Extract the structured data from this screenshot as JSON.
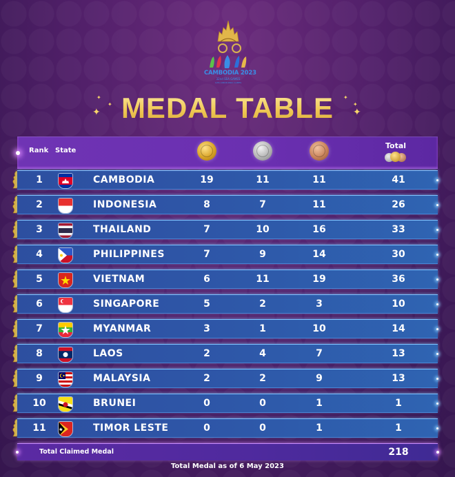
{
  "logo": {
    "title": "CAMBODIA 2023",
    "subtitle": "32nd SEA GAMES",
    "subtitle2": "12th ASEAN PARA GAMES"
  },
  "title": "MEDAL TABLE",
  "header": {
    "rank": "Rank",
    "state": "State",
    "gold_icon": "gold-medal",
    "silver_icon": "silver-medal",
    "bronze_icon": "bronze-medal",
    "total": "Total"
  },
  "rows": [
    {
      "rank": "1",
      "state": "CAMBODIA",
      "flag": "cambodia-flag",
      "gold": "19",
      "silver": "11",
      "bronze": "11",
      "total": "41"
    },
    {
      "rank": "2",
      "state": "INDONESIA",
      "flag": "indonesia-flag",
      "gold": "8",
      "silver": "7",
      "bronze": "11",
      "total": "26"
    },
    {
      "rank": "3",
      "state": "THAILAND",
      "flag": "thailand-flag",
      "gold": "7",
      "silver": "10",
      "bronze": "16",
      "total": "33"
    },
    {
      "rank": "4",
      "state": "PHILIPPINES",
      "flag": "philippines-flag",
      "gold": "7",
      "silver": "9",
      "bronze": "14",
      "total": "30"
    },
    {
      "rank": "5",
      "state": "VIETNAM",
      "flag": "vietnam-flag",
      "gold": "6",
      "silver": "11",
      "bronze": "19",
      "total": "36"
    },
    {
      "rank": "6",
      "state": "SINGAPORE",
      "flag": "singapore-flag",
      "gold": "5",
      "silver": "2",
      "bronze": "3",
      "total": "10"
    },
    {
      "rank": "7",
      "state": "MYANMAR",
      "flag": "myanmar-flag",
      "gold": "3",
      "silver": "1",
      "bronze": "10",
      "total": "14"
    },
    {
      "rank": "8",
      "state": "LAOS",
      "flag": "laos-flag",
      "gold": "2",
      "silver": "4",
      "bronze": "7",
      "total": "13"
    },
    {
      "rank": "9",
      "state": "MALAYSIA",
      "flag": "malaysia-flag",
      "gold": "2",
      "silver": "2",
      "bronze": "9",
      "total": "13"
    },
    {
      "rank": "10",
      "state": "BRUNEI",
      "flag": "brunei-flag",
      "gold": "0",
      "silver": "0",
      "bronze": "1",
      "total": "1"
    },
    {
      "rank": "11",
      "state": "TIMOR LESTE",
      "flag": "timor-leste-flag",
      "gold": "0",
      "silver": "0",
      "bronze": "1",
      "total": "1"
    }
  ],
  "total_row": {
    "label": "Total Claimed Medal",
    "value": "218"
  },
  "footer": "Total Medal as of 6 May 2023",
  "colors": {
    "background": "#52206a",
    "row": "#2e57a8",
    "header_row": "#6a2fb0",
    "title_gold": "#f0c955",
    "gold": "#d9a326",
    "silver": "#b5b5b5",
    "bronze": "#c9825a"
  }
}
